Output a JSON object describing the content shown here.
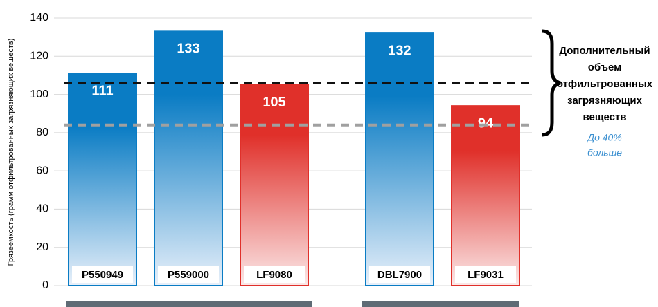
{
  "chart_data": {
    "type": "bar",
    "y_label": "Грязеемкость (грамм отфильтрованных загрязняющих веществ)",
    "categories": [
      "P550949",
      "P559000",
      "LF9080",
      "DBL7900",
      "LF9031"
    ],
    "values": [
      111,
      133,
      105,
      132,
      94
    ],
    "colors": [
      "#0a7cc4",
      "#0a7cc4",
      "#e0302a",
      "#0a7cc4",
      "#e0302a"
    ],
    "ylim": [
      0,
      140
    ],
    "yticks": [
      0,
      20,
      40,
      60,
      80,
      100,
      120,
      140
    ],
    "grid": true,
    "reference_lines": [
      {
        "value": 106,
        "color": "#111111"
      },
      {
        "value": 84,
        "color": "#a0a0a0"
      }
    ],
    "annotation_lines": [
      "Дополнительный",
      "объем",
      "отфильтрованных",
      "загрязняющих",
      "веществ"
    ],
    "note_lines": [
      "До 40%",
      "больше"
    ]
  }
}
